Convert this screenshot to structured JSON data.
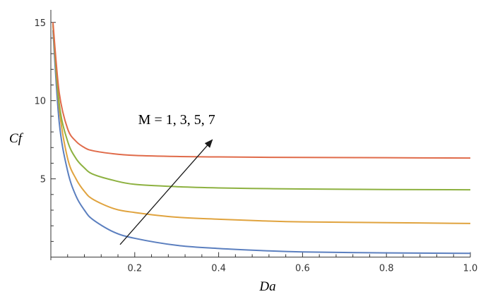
{
  "chart_data": {
    "type": "line",
    "title": "",
    "xlabel": "Da",
    "ylabel": "Cf",
    "xlim": [
      0,
      1.0
    ],
    "ylim": [
      -0.2,
      15.8
    ],
    "x_ticks": [
      "0.2",
      "0.4",
      "0.6",
      "0.8",
      "1.0"
    ],
    "x_tick_values": [
      0.2,
      0.4,
      0.6,
      0.8,
      1.0
    ],
    "y_ticks": [
      "5",
      "10",
      "15"
    ],
    "y_tick_values": [
      5,
      10,
      15
    ],
    "grid": false,
    "series": [
      {
        "color": "#5B7FBF",
        "x": [
          0.005,
          0.02,
          0.04,
          0.06,
          0.08,
          0.1,
          0.15,
          0.2,
          0.3,
          0.4,
          0.5,
          0.6,
          0.8,
          1.0
        ],
        "y": [
          14.5,
          8.6,
          5.5,
          3.9,
          3.0,
          2.4,
          1.6,
          1.2,
          0.75,
          0.55,
          0.42,
          0.33,
          0.27,
          0.24
        ]
      },
      {
        "color": "#E0A33E",
        "x": [
          0.005,
          0.02,
          0.04,
          0.06,
          0.08,
          0.1,
          0.15,
          0.2,
          0.3,
          0.4,
          0.5,
          0.6,
          0.8,
          1.0
        ],
        "y": [
          14.8,
          9.5,
          6.3,
          5.0,
          4.2,
          3.7,
          3.1,
          2.85,
          2.55,
          2.42,
          2.32,
          2.25,
          2.2,
          2.15
        ]
      },
      {
        "color": "#8DB140",
        "x": [
          0.005,
          0.02,
          0.04,
          0.06,
          0.08,
          0.1,
          0.15,
          0.2,
          0.3,
          0.4,
          0.5,
          0.6,
          0.8,
          1.0
        ],
        "y": [
          14.9,
          9.8,
          7.4,
          6.3,
          5.7,
          5.3,
          4.9,
          4.65,
          4.5,
          4.42,
          4.38,
          4.35,
          4.32,
          4.3
        ]
      },
      {
        "color": "#E06B4A",
        "x": [
          0.005,
          0.02,
          0.04,
          0.06,
          0.08,
          0.1,
          0.15,
          0.2,
          0.3,
          0.4,
          0.5,
          0.6,
          0.8,
          1.0
        ],
        "y": [
          15.0,
          10.5,
          8.2,
          7.4,
          7.0,
          6.8,
          6.6,
          6.5,
          6.43,
          6.4,
          6.38,
          6.37,
          6.35,
          6.33
        ]
      }
    ],
    "annotation": {
      "text": "M = 1, 3, 5, 7",
      "arrow_from": [
        0.165,
        0.8
      ],
      "arrow_to": [
        0.385,
        7.5
      ],
      "text_anchor": [
        0.3,
        8.5
      ]
    }
  }
}
